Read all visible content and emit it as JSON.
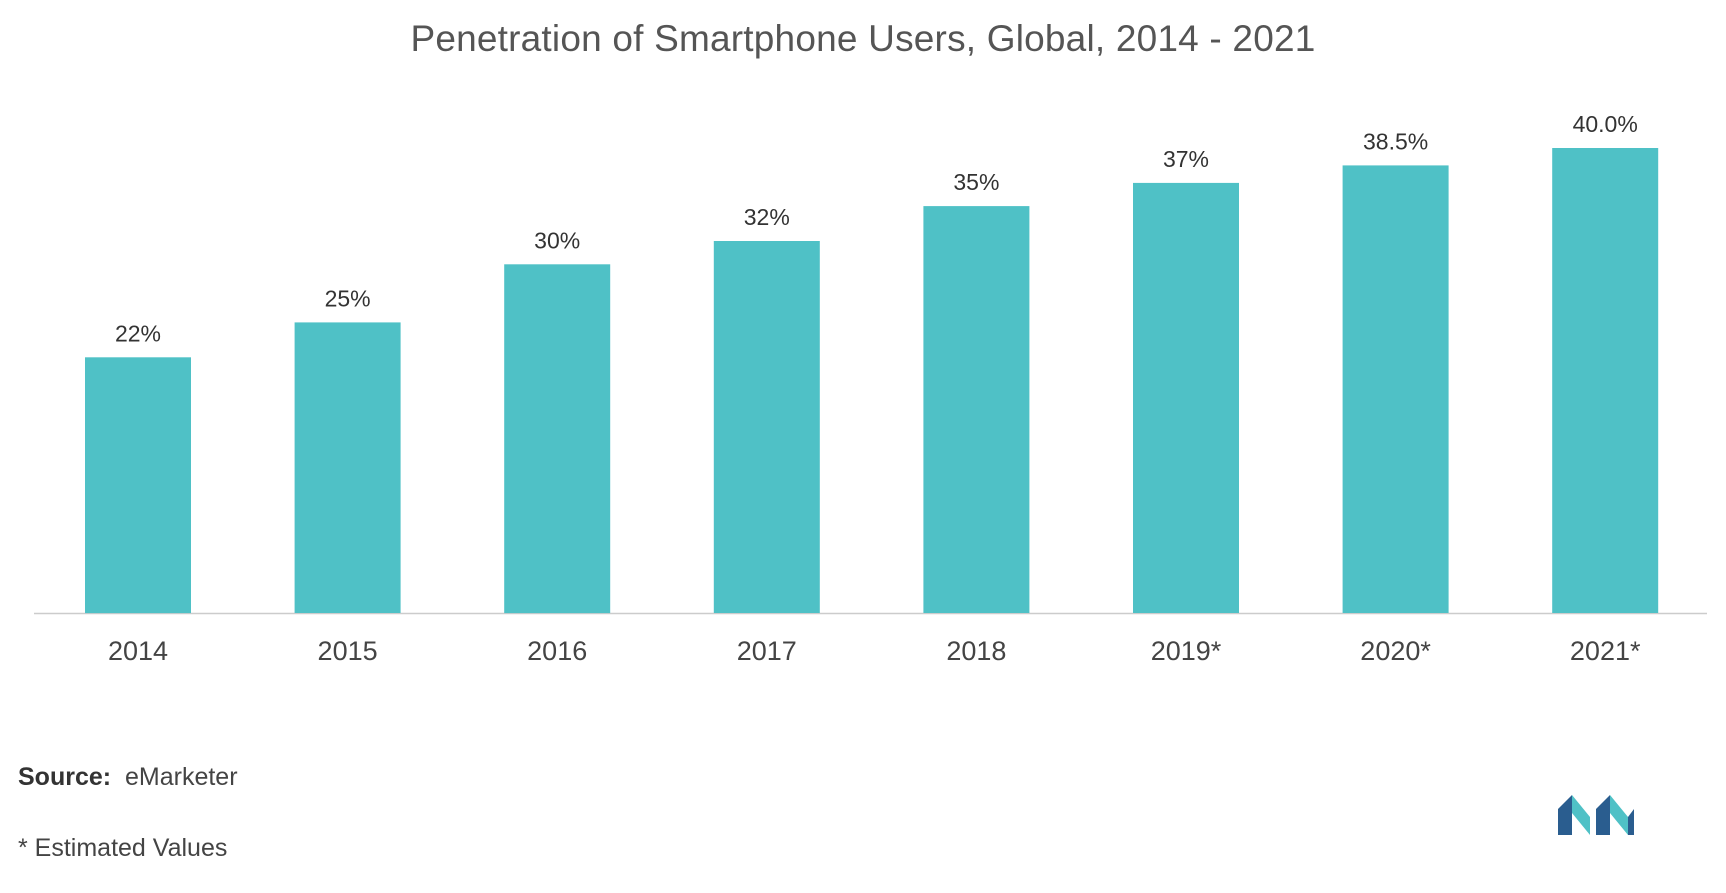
{
  "chart_data": {
    "type": "bar",
    "title": "Penetration of Smartphone Users, Global, 2014 - 2021",
    "categories": [
      "2014",
      "2015",
      "2016",
      "2017",
      "2018",
      "2019*",
      "2020*",
      "2021*"
    ],
    "values": [
      22,
      25,
      30,
      32,
      35,
      37,
      38.5,
      40.0
    ],
    "value_labels": [
      "22%",
      "25%",
      "30%",
      "32%",
      "35%",
      "37%",
      "38.5%",
      "40.0%"
    ],
    "xlabel": "",
    "ylabel": "",
    "ylim": [
      0,
      40
    ],
    "grid": false,
    "bar_color": "#4fc1c6"
  },
  "footer": {
    "source_label": "Source:",
    "source_value": "eMarketer",
    "footnote": "* Estimated Values"
  },
  "colors": {
    "bar": "#4fc1c6",
    "axis": "#cccccc",
    "logo_dark": "#2a5d8f",
    "logo_light": "#4fc1c6"
  }
}
